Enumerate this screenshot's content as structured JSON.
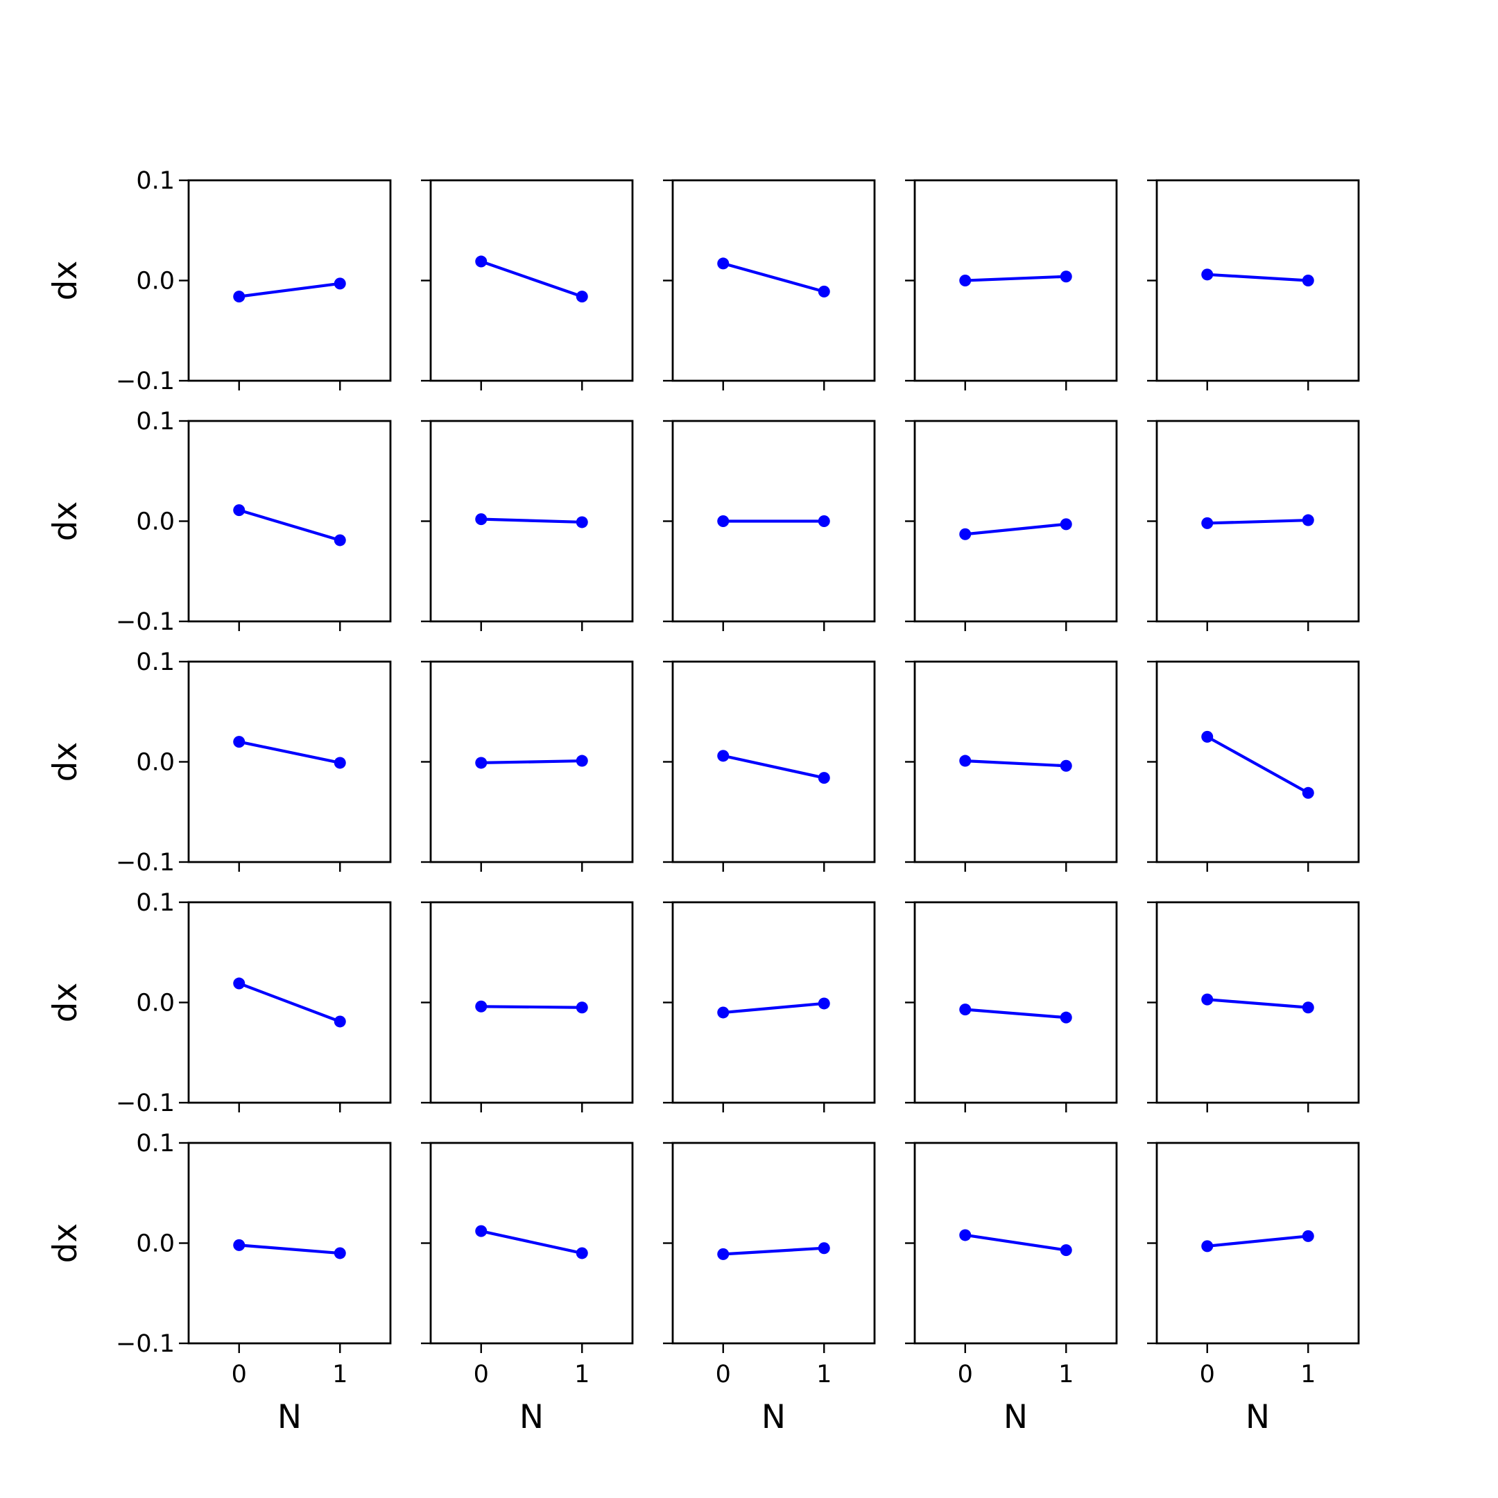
{
  "chart_data": {
    "type": "line",
    "layout": {
      "rows": 5,
      "cols": 5,
      "sharex": true,
      "sharey": true
    },
    "x": [
      0,
      1
    ],
    "xlim": [
      -0.5,
      1.5
    ],
    "ylim": [
      -0.1,
      0.1
    ],
    "xticks": [
      0,
      1
    ],
    "yticks": [
      -0.1,
      0.0,
      0.1
    ],
    "xtick_labels": [
      "0",
      "1"
    ],
    "ytick_labels": [
      "−0.1",
      "0.0",
      "0.1"
    ],
    "xlabel": "N",
    "ylabel": "dx",
    "marker": "circle",
    "line_color": "#0000ff",
    "grid": false,
    "panels": [
      [
        [
          -0.016,
          -0.003
        ],
        [
          0.019,
          -0.016
        ],
        [
          0.017,
          -0.011
        ],
        [
          0.0,
          0.004
        ],
        [
          0.006,
          0.0
        ]
      ],
      [
        [
          0.011,
          -0.019
        ],
        [
          0.002,
          -0.001
        ],
        [
          0.0,
          0.0
        ],
        [
          -0.013,
          -0.003
        ],
        [
          -0.002,
          0.001
        ]
      ],
      [
        [
          0.02,
          -0.001
        ],
        [
          -0.001,
          0.001
        ],
        [
          0.006,
          -0.016
        ],
        [
          0.001,
          -0.004
        ],
        [
          0.025,
          -0.031
        ]
      ],
      [
        [
          0.019,
          -0.019
        ],
        [
          -0.004,
          -0.005
        ],
        [
          -0.01,
          -0.001
        ],
        [
          -0.007,
          -0.015
        ],
        [
          0.003,
          -0.005
        ]
      ],
      [
        [
          -0.002,
          -0.01
        ],
        [
          0.012,
          -0.01
        ],
        [
          -0.011,
          -0.005
        ],
        [
          0.008,
          -0.007
        ],
        [
          -0.003,
          0.007
        ]
      ]
    ]
  }
}
